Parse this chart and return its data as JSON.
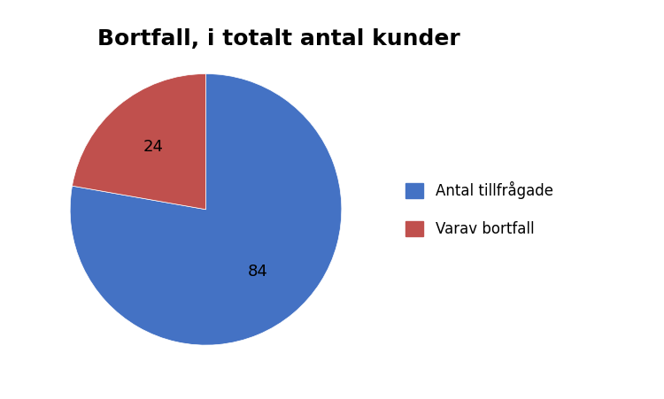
{
  "title": "Bortfall, i totalt antal kunder",
  "values": [
    84,
    24
  ],
  "labels": [
    "Antal tillfrågade",
    "Varav bortfall"
  ],
  "colors": [
    "#4472C4",
    "#C0504D"
  ],
  "autopct_labels": [
    "84",
    "24"
  ],
  "startangle": 90,
  "background_color": "#ffffff",
  "title_fontsize": 18,
  "label_fontsize": 13,
  "legend_fontsize": 12
}
